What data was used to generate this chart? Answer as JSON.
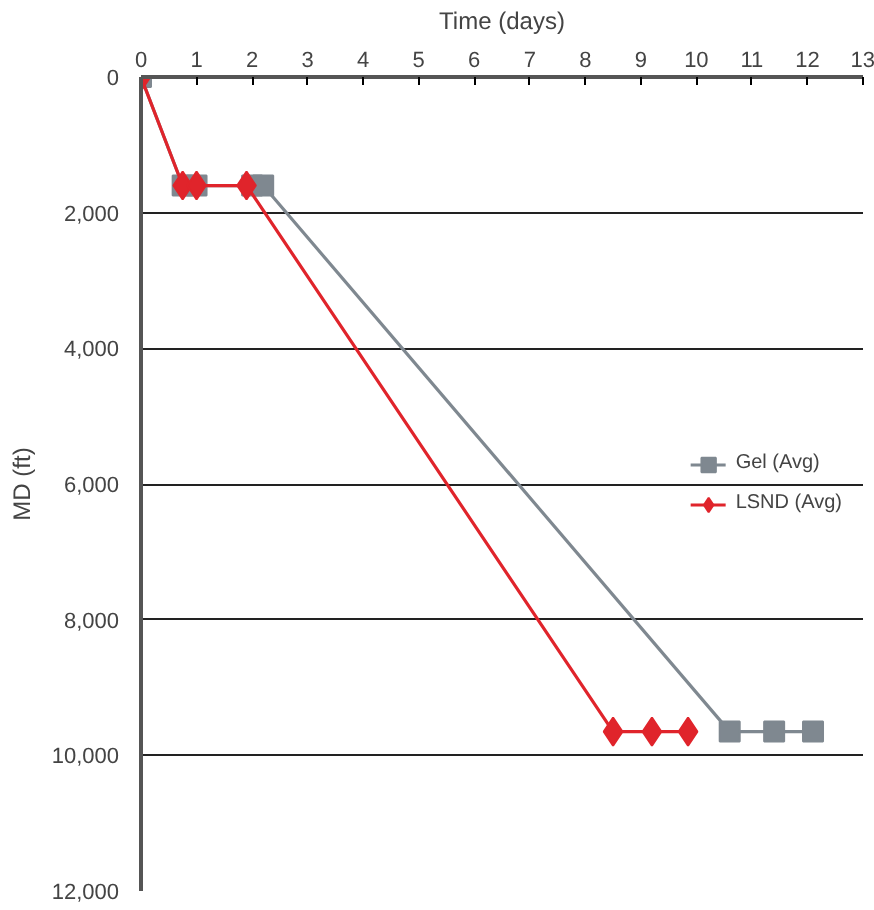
{
  "chart_data": {
    "type": "line",
    "xlabel": "Time (days)",
    "ylabel": "MD (ft)",
    "xlim": [
      0,
      13
    ],
    "xticks": [
      0,
      1,
      2,
      3,
      4,
      5,
      6,
      7,
      8,
      9,
      10,
      11,
      12,
      13
    ],
    "ylim": [
      12000,
      0
    ],
    "yticks": [
      0,
      {
        "value": 2000,
        "label": "2,000"
      },
      {
        "value": 4000,
        "label": "4,000"
      },
      {
        "value": 6000,
        "label": "6,000"
      },
      {
        "value": 8000,
        "label": "8,000"
      },
      {
        "value": 10000,
        "label": "10,000"
      },
      {
        "value": 12000,
        "label": "12,000"
      }
    ],
    "grid": "y",
    "legend": "right",
    "series": [
      {
        "name": "Gel (Avg)",
        "color": "#7f8890",
        "marker": "square",
        "x": [
          0,
          0.75,
          1,
          2,
          2.2,
          10.6,
          11.4,
          12.1
        ],
        "values": [
          0,
          1600,
          1600,
          1600,
          1600,
          9650,
          9650,
          9650
        ]
      },
      {
        "name": "LSND (Avg)",
        "color": "#e0242b",
        "marker": "diamond",
        "x": [
          0,
          0.75,
          1,
          1.9,
          8.5,
          9.2,
          9.85
        ],
        "values": [
          0,
          1600,
          1600,
          1600,
          9650,
          9650,
          9650
        ]
      }
    ]
  }
}
